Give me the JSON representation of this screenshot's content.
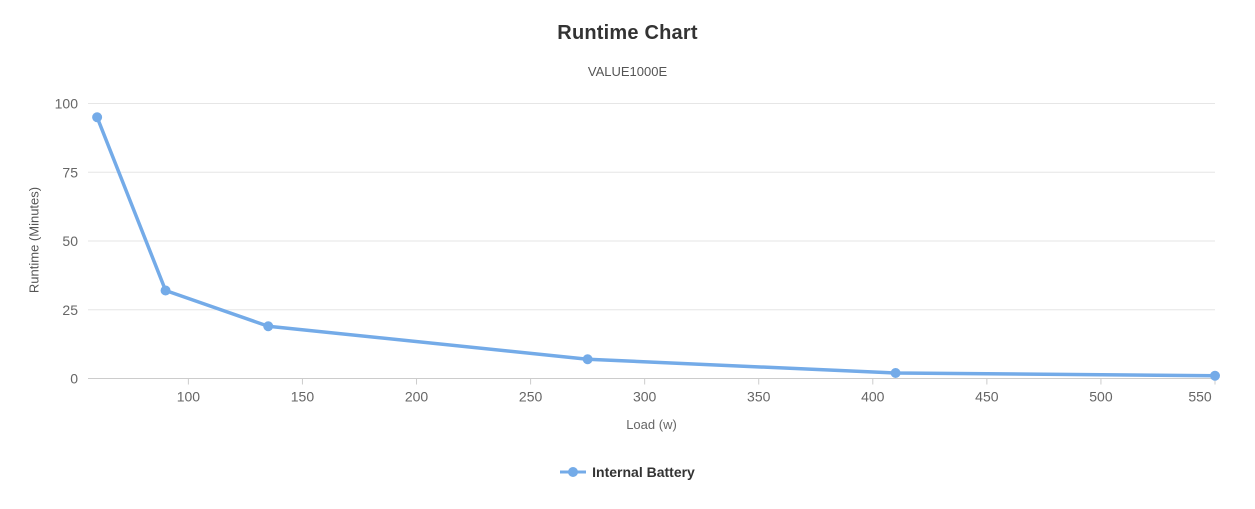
{
  "chart_data": {
    "type": "line",
    "title": "Runtime Chart",
    "subtitle": "VALUE1000E",
    "xlabel": "Load (w)",
    "ylabel": "Runtime (Minutes)",
    "series": [
      {
        "name": "Internal Battery",
        "color": "#74abe8",
        "points": [
          [
            60,
            95
          ],
          [
            90,
            32
          ],
          [
            135,
            19
          ],
          [
            275,
            7
          ],
          [
            410,
            2
          ],
          [
            550,
            1
          ]
        ]
      }
    ],
    "x_ticks": [
      100,
      150,
      200,
      250,
      300,
      350,
      400,
      450,
      500,
      550
    ],
    "y_ticks": [
      0,
      25,
      50,
      75,
      100
    ],
    "xlim": [
      56,
      550
    ],
    "ylim": [
      0,
      100
    ],
    "grid": "horizontal-only",
    "legend_position": "bottom-center",
    "marker": "circle",
    "colors": {
      "series": "#74abe8",
      "grid_line": "#e6e6e6",
      "axis_line": "#cccccc",
      "tick_label": "#666666",
      "title": "#333333",
      "subtitle": "#555555",
      "legend_text": "#333333"
    }
  }
}
